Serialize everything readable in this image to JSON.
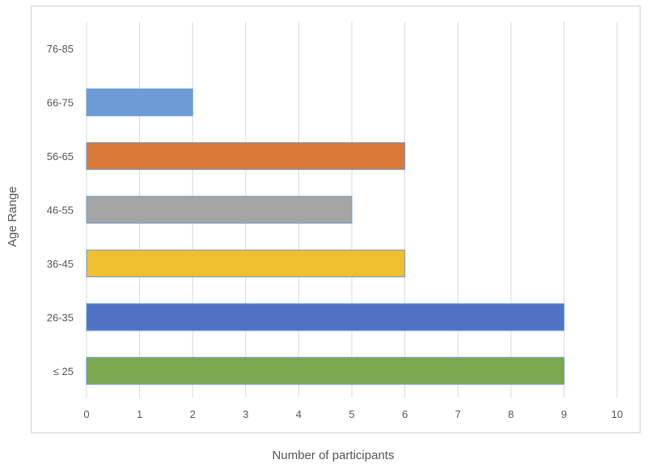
{
  "chart_data": {
    "type": "bar",
    "orientation": "horizontal",
    "title": "",
    "xlabel": "Number of participants",
    "ylabel": "Age Range",
    "xlim": [
      0,
      10
    ],
    "x_ticks": [
      "0",
      "1",
      "2",
      "3",
      "4",
      "5",
      "6",
      "7",
      "8",
      "9",
      "10"
    ],
    "grid": "vertical",
    "legend": "none",
    "categories": [
      "≤ 25",
      "26-35",
      "36-45",
      "46-55",
      "56-65",
      "66-75",
      "76-85"
    ],
    "values": [
      9,
      9,
      6,
      5,
      6,
      2,
      0
    ],
    "colors": [
      "#7ea84e",
      "#4f73c4",
      "#f0be31",
      "#a5a5a5",
      "#d97a3a",
      "#6d9bd6",
      "#cccccc"
    ]
  }
}
